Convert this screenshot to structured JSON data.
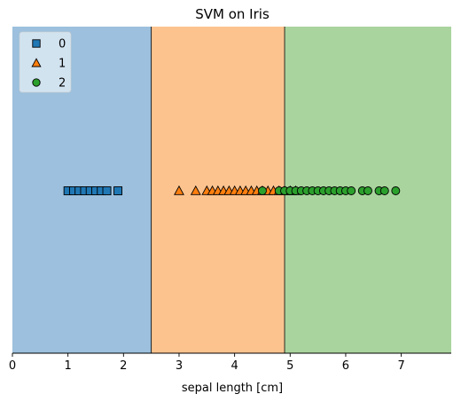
{
  "chart_data": {
    "type": "scatter",
    "title": "SVM on Iris",
    "xlabel": "sepal length [cm]",
    "ylabel": "",
    "xlim": [
      0,
      7.9
    ],
    "xticks": [
      0,
      1,
      2,
      3,
      4,
      5,
      6,
      7
    ],
    "yticks": [],
    "grid": false,
    "legend_position": "top-left",
    "decision_boundaries": [
      2.5,
      4.9
    ],
    "regions": [
      {
        "class": "0",
        "from": 0,
        "to": 2.5,
        "color": "#9cc0dd"
      },
      {
        "class": "1",
        "from": 2.5,
        "to": 4.9,
        "color": "#fcc38f"
      },
      {
        "class": "2",
        "from": 4.9,
        "to": 7.9,
        "color": "#aad49e"
      }
    ],
    "series": [
      {
        "name": "0",
        "marker": "square",
        "color": "#1f77b4",
        "x": [
          1.0,
          1.1,
          1.2,
          1.3,
          1.4,
          1.5,
          1.6,
          1.7,
          1.9
        ]
      },
      {
        "name": "1",
        "marker": "triangle",
        "color": "#ff7f0e",
        "x": [
          3.0,
          3.3,
          3.5,
          3.6,
          3.7,
          3.8,
          3.9,
          4.0,
          4.1,
          4.2,
          4.3,
          4.4,
          4.5,
          4.6,
          4.7,
          4.8,
          4.9,
          5.0,
          5.1
        ]
      },
      {
        "name": "2",
        "marker": "circle",
        "color": "#2ca02c",
        "x": [
          4.5,
          4.8,
          4.9,
          5.0,
          5.1,
          5.2,
          5.3,
          5.4,
          5.5,
          5.6,
          5.7,
          5.8,
          5.9,
          6.0,
          6.1,
          6.3,
          6.4,
          6.6,
          6.7,
          6.9
        ]
      }
    ]
  }
}
